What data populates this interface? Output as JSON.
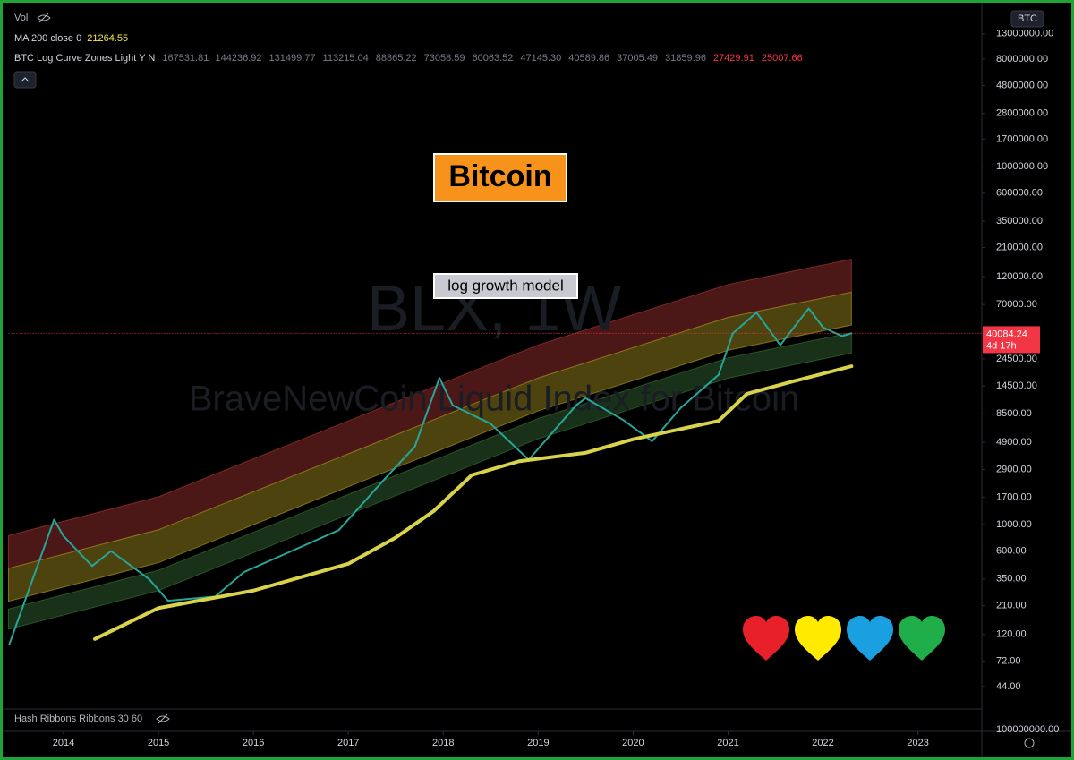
{
  "chart_data": {
    "type": "line",
    "log_scale": true,
    "grid": false,
    "symbol": "BTC",
    "watermark": [
      "BLX, 1W",
      "BraveNewCoin Liquid Index for Bitcoin"
    ],
    "annotations": {
      "title": "Bitcoin",
      "subtitle": "log growth model"
    },
    "legend": {
      "vol": "Vol",
      "ma_label": "MA 200 close 0",
      "ma_value": 21264.55,
      "zones_label": "BTC Log Curve Zones Light Y N",
      "zone_values": [
        167531.81,
        144236.92,
        131499.77,
        113215.04,
        88865.22,
        73058.59,
        60063.52,
        {
          "value": 47145.3,
          "label": "47145.30"
        },
        40589.86,
        37005.49,
        31859.96,
        27429.91,
        25007.66
      ],
      "hash_label": "Hash Ribbons Ribbons 30 60"
    },
    "last_price": 40084.24,
    "countdown": "4d 17h",
    "hash_pane_tick": {
      "value": 100000000,
      "label": "100000000.00"
    },
    "xlim": [
      2013.42,
      2023.66
    ],
    "xticks": [
      2014,
      2015,
      2016,
      2017,
      2018,
      2019,
      2020,
      2021,
      2022,
      2023
    ],
    "ylim": [
      29,
      23300000
    ],
    "yticks": [
      {
        "value": 13000000,
        "label": "13000000.00"
      },
      {
        "value": 8000000,
        "label": "8000000.00"
      },
      {
        "value": 4800000,
        "label": "4800000.00"
      },
      {
        "value": 2800000,
        "label": "2800000.00"
      },
      {
        "value": 1700000,
        "label": "1700000.00"
      },
      {
        "value": 1000000,
        "label": "1000000.00"
      },
      {
        "value": 600000,
        "label": "600000.00"
      },
      {
        "value": 350000,
        "label": "350000.00"
      },
      {
        "value": 210000,
        "label": "210000.00"
      },
      {
        "value": 120000,
        "label": "120000.00"
      },
      {
        "value": 70000,
        "label": "70000.00"
      },
      {
        "value": 24500,
        "label": "24500.00"
      },
      {
        "value": 14500,
        "label": "14500.00"
      },
      {
        "value": 8500,
        "label": "8500.00"
      },
      {
        "value": 4900,
        "label": "4900.00"
      },
      {
        "value": 2900,
        "label": "2900.00"
      },
      {
        "value": 1700,
        "label": "1700.00"
      },
      {
        "value": 1000,
        "label": "1000.00"
      },
      {
        "value": 600,
        "label": "600.00"
      },
      {
        "value": 350,
        "label": "350.00"
      },
      {
        "value": 210,
        "label": "210.00"
      },
      {
        "value": 120,
        "label": "120.00"
      },
      {
        "value": 72,
        "label": "72.00"
      },
      {
        "value": 44,
        "label": "44.00"
      }
    ],
    "zones": [
      {
        "color": "#8b2a2a",
        "x": [
          2013.42,
          2015,
          2017,
          2019,
          2021,
          2022.3
        ],
        "upper": [
          810,
          1710,
          7400,
          32000,
          103000,
          167531.81
        ],
        "lower": [
          430,
          906,
          3920,
          16960,
          54600,
          88865.22
        ]
      },
      {
        "color": "#8a7a1c",
        "x": [
          2013.42,
          2015,
          2017,
          2019,
          2021,
          2022.3
        ],
        "upper": [
          430,
          906,
          3920,
          16960,
          54600,
          88865.22
        ],
        "lower": [
          228,
          480,
          2080,
          8990,
          28940,
          47145.3
        ]
      },
      {
        "color": "#2c5a2c",
        "x": [
          2013.42,
          2015,
          2017,
          2019,
          2021,
          2022.3
        ],
        "upper": [
          196,
          414,
          1790,
          7740,
          24930,
          40589.86
        ],
        "lower": [
          133,
          280,
          1214,
          5250,
          16900,
          27429.91
        ]
      }
    ],
    "series": [
      {
        "color": "#26a69a",
        "x": [
          2013.43,
          2013.9,
          2014.0,
          2014.3,
          2014.5,
          2014.9,
          2015.1,
          2015.6,
          2015.9,
          2016.5,
          2016.9,
          2017.4,
          2017.7,
          2017.96,
          2018.1,
          2018.5,
          2018.9,
          2019.4,
          2019.5,
          2019.9,
          2020.2,
          2020.5,
          2020.9,
          2021.05,
          2021.3,
          2021.55,
          2021.85,
          2022.0,
          2022.2,
          2022.3
        ],
        "values": [
          100,
          1100,
          800,
          450,
          600,
          350,
          230,
          250,
          400,
          650,
          900,
          2500,
          4500,
          17000,
          10000,
          7000,
          3500,
          10000,
          11500,
          7500,
          5000,
          9500,
          18000,
          40000,
          60000,
          32000,
          65000,
          45000,
          38000,
          40084.24
        ]
      },
      {
        "name": "MA 200 close 0",
        "color": "#d8d34a",
        "x": [
          2014.33,
          2015.0,
          2016.0,
          2017.0,
          2017.5,
          2017.9,
          2018.3,
          2018.8,
          2019.5,
          2020.0,
          2020.9,
          2021.2,
          2021.7,
          2022.3
        ],
        "values": [
          110,
          200,
          280,
          470,
          780,
          1300,
          2600,
          3400,
          4000,
          5200,
          7400,
          12500,
          16000,
          21264.55
        ]
      }
    ]
  }
}
